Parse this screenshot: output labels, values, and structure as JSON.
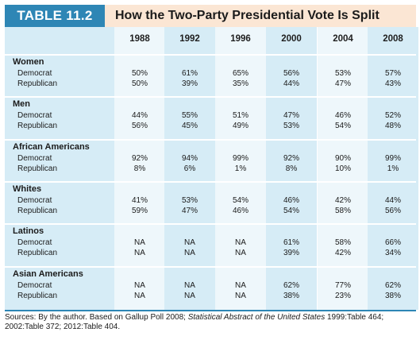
{
  "header": {
    "table_label": "TABLE 11.2",
    "title": "How the Two-Party Presidential Vote Is Split"
  },
  "years": [
    "1988",
    "1992",
    "1996",
    "2000",
    "2004",
    "2008"
  ],
  "groups": [
    {
      "name": "Women",
      "rows": [
        {
          "label": "Democrat",
          "values": [
            "50%",
            "61%",
            "65%",
            "56%",
            "53%",
            "57%"
          ]
        },
        {
          "label": "Republican",
          "values": [
            "50%",
            "39%",
            "35%",
            "44%",
            "47%",
            "43%"
          ]
        }
      ]
    },
    {
      "name": "Men",
      "rows": [
        {
          "label": "Democrat",
          "values": [
            "44%",
            "55%",
            "51%",
            "47%",
            "46%",
            "52%"
          ]
        },
        {
          "label": "Republican",
          "values": [
            "56%",
            "45%",
            "49%",
            "53%",
            "54%",
            "48%"
          ]
        }
      ]
    },
    {
      "name": "African Americans",
      "rows": [
        {
          "label": "Democrat",
          "values": [
            "92%",
            "94%",
            "99%",
            "92%",
            "90%",
            "99%"
          ]
        },
        {
          "label": "Republican",
          "values": [
            "8%",
            "6%",
            "1%",
            "8%",
            "10%",
            "1%"
          ]
        }
      ]
    },
    {
      "name": "Whites",
      "rows": [
        {
          "label": "Democrat",
          "values": [
            "41%",
            "53%",
            "54%",
            "46%",
            "42%",
            "44%"
          ]
        },
        {
          "label": "Republican",
          "values": [
            "59%",
            "47%",
            "46%",
            "54%",
            "58%",
            "56%"
          ]
        }
      ]
    },
    {
      "name": "Latinos",
      "rows": [
        {
          "label": "Democrat",
          "values": [
            "NA",
            "NA",
            "NA",
            "61%",
            "58%",
            "66%"
          ]
        },
        {
          "label": "Republican",
          "values": [
            "NA",
            "NA",
            "NA",
            "39%",
            "42%",
            "34%"
          ]
        }
      ]
    },
    {
      "name": "Asian Americans",
      "rows": [
        {
          "label": "Democrat",
          "values": [
            "NA",
            "NA",
            "NA",
            "62%",
            "77%",
            "62%"
          ]
        },
        {
          "label": "Republican",
          "values": [
            "NA",
            "NA",
            "NA",
            "38%",
            "23%",
            "38%"
          ]
        }
      ]
    }
  ],
  "footer": {
    "prefix": "Sources: By the author. Based on Gallup Poll 2008; ",
    "italic": "Statistical Abstract of the United States",
    "suffix": " 1999:Table 464; 2002:Table 372; 2012:Table 404."
  },
  "colors": {
    "accent": "#2e86b5",
    "stripe_dark": "#d6ecf6",
    "stripe_light": "#eef7fb"
  }
}
